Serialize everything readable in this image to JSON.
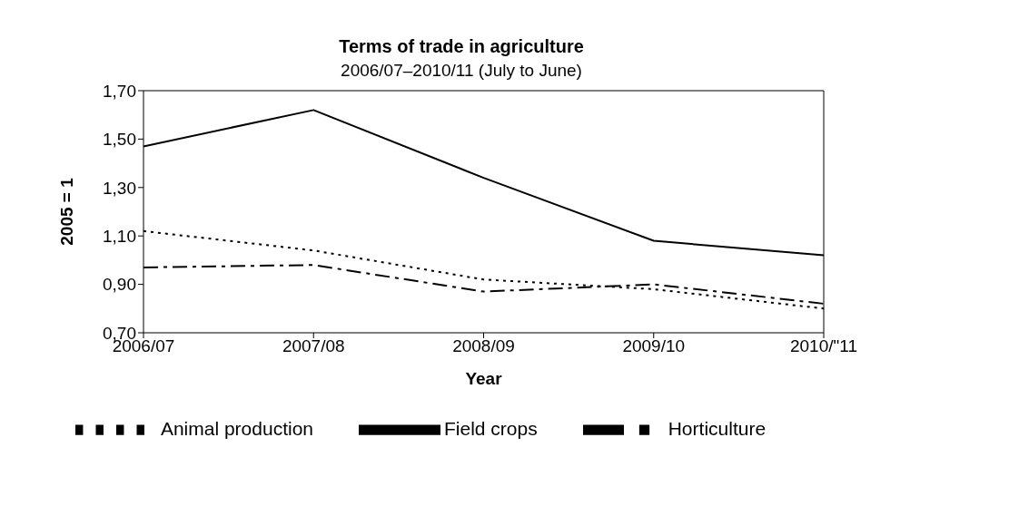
{
  "chart_data": {
    "type": "line",
    "title": "Terms of trade in agriculture",
    "subtitle": "2006/07–2010/11 (July to June)",
    "xlabel": "Year",
    "ylabel": "2005 = 1",
    "categories": [
      "2006/07",
      "2007/08",
      "2008/09",
      "2009/10",
      "2010/\"11"
    ],
    "series": [
      {
        "name": "Field crops",
        "color": "#000000",
        "line_style": "solid",
        "values": [
          1.47,
          1.62,
          1.34,
          1.08,
          1.02
        ]
      },
      {
        "name": "Horticulture",
        "color": "#000000",
        "line_style": "dashed",
        "values": [
          0.97,
          0.98,
          0.87,
          0.9,
          0.82
        ]
      },
      {
        "name": "Animal production",
        "color": "#000000",
        "line_style": "dotted",
        "values": [
          1.12,
          1.04,
          0.92,
          0.88,
          0.8
        ]
      }
    ],
    "ylim": [
      0.7,
      1.7
    ],
    "yticks": [
      {
        "value": 0.7,
        "label": "0,70"
      },
      {
        "value": 0.9,
        "label": "0,90"
      },
      {
        "value": 1.1,
        "label": "1,10"
      },
      {
        "value": 1.3,
        "label": "1,30"
      },
      {
        "value": 1.5,
        "label": "1,50"
      },
      {
        "value": 1.7,
        "label": "1,70"
      }
    ],
    "grid": false,
    "legend": "bottom",
    "marker": "none"
  }
}
